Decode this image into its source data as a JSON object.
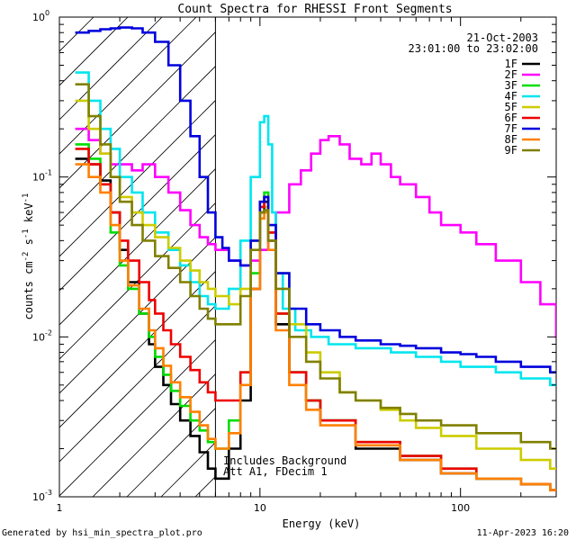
{
  "footer": {
    "left": "Generated by hsi_min_spectra_plot.pro",
    "right": "11-Apr-2023 16:20"
  },
  "chart_data": {
    "type": "line",
    "title": "Count Spectra for RHESSI Front Segments",
    "xlabel": "Energy (keV)",
    "ylabel_parts": [
      "counts cm",
      "-2",
      " s",
      "-1",
      " keV",
      "-1"
    ],
    "xscale": "log",
    "yscale": "log",
    "xlim": [
      1,
      300
    ],
    "ylim": [
      0.001,
      1
    ],
    "x_tick_labels": [
      {
        "value": 1,
        "label": "1"
      },
      {
        "value": 10,
        "label": "10"
      },
      {
        "value": 100,
        "label": "100"
      }
    ],
    "y_tick_labels": [
      {
        "value": 1,
        "base": "10",
        "exp": "0"
      },
      {
        "value": 0.1,
        "base": "10",
        "exp": "-1"
      },
      {
        "value": 0.01,
        "base": "10",
        "exp": "-2"
      },
      {
        "value": 0.001,
        "base": "10",
        "exp": "-3"
      }
    ],
    "date_label": "21-Oct-2003",
    "time_label": "23:01:00 to 23:02:00",
    "annotation_lines": [
      "Includes Background",
      "Att A1, FDecim 1"
    ],
    "shaded_region": {
      "x_max": 6,
      "style": "diagonal hatch"
    },
    "grid": false,
    "legend_position": "top-right",
    "series": [
      {
        "name": "1F",
        "color": "#000000",
        "x": [
          1.2,
          1.4,
          1.6,
          1.8,
          2.0,
          2.2,
          2.5,
          2.8,
          3.0,
          3.3,
          3.6,
          4.0,
          4.5,
          5.0,
          5.5,
          6.0,
          7.0,
          8.0,
          9.0,
          10.0,
          10.5,
          11.0,
          12.0,
          14.0,
          17.0,
          20.0,
          30.0,
          50.0,
          80.0,
          120.0,
          200.0,
          280.0
        ],
        "y": [
          0.13,
          0.12,
          0.095,
          0.06,
          0.035,
          0.022,
          0.014,
          0.009,
          0.0065,
          0.005,
          0.0038,
          0.003,
          0.0024,
          0.0019,
          0.0015,
          0.0013,
          0.002,
          0.004,
          0.02,
          0.06,
          0.07,
          0.04,
          0.012,
          0.006,
          0.004,
          0.003,
          0.002,
          0.0017,
          0.0014,
          0.0013,
          0.0012,
          0.0011
        ]
      },
      {
        "name": "2F",
        "color": "#ff00ff",
        "x": [
          1.2,
          1.4,
          1.6,
          1.8,
          2.0,
          2.3,
          2.6,
          3.0,
          3.5,
          4.0,
          4.5,
          5.0,
          5.5,
          6.0,
          7.0,
          8.0,
          9.0,
          10.0,
          11.0,
          12.0,
          14.0,
          16.0,
          18.0,
          20.0,
          22.0,
          25.0,
          28.0,
          32.0,
          36.0,
          40.0,
          45.0,
          50.0,
          60.0,
          70.0,
          80.0,
          100.0,
          120.0,
          150.0,
          200.0,
          250.0,
          300.0
        ],
        "y": [
          0.2,
          0.17,
          0.14,
          0.12,
          0.12,
          0.11,
          0.12,
          0.1,
          0.08,
          0.062,
          0.05,
          0.042,
          0.038,
          0.035,
          0.03,
          0.028,
          0.03,
          0.035,
          0.045,
          0.06,
          0.09,
          0.11,
          0.14,
          0.17,
          0.18,
          0.16,
          0.13,
          0.12,
          0.14,
          0.12,
          0.1,
          0.09,
          0.075,
          0.06,
          0.05,
          0.045,
          0.038,
          0.03,
          0.022,
          0.016,
          0.01
        ]
      },
      {
        "name": "3F",
        "color": "#00dd00",
        "x": [
          1.2,
          1.4,
          1.6,
          1.8,
          2.0,
          2.2,
          2.5,
          2.8,
          3.0,
          3.3,
          3.6,
          4.0,
          4.5,
          5.0,
          5.5,
          6.0,
          7.0,
          8.0,
          9.0,
          10.0,
          10.5,
          11.0,
          12.0,
          14.0,
          17.0,
          20.0,
          30.0,
          50.0,
          80.0,
          120.0,
          200.0,
          280.0
        ],
        "y": [
          0.16,
          0.13,
          0.09,
          0.045,
          0.028,
          0.02,
          0.014,
          0.01,
          0.0075,
          0.0058,
          0.0046,
          0.0037,
          0.003,
          0.0026,
          0.0022,
          0.002,
          0.003,
          0.006,
          0.025,
          0.07,
          0.08,
          0.045,
          0.014,
          0.006,
          0.004,
          0.003,
          0.0022,
          0.0018,
          0.0015,
          0.0013,
          0.0012,
          0.0011
        ]
      },
      {
        "name": "4F",
        "color": "#00e5ee",
        "x": [
          1.2,
          1.4,
          1.6,
          1.8,
          2.0,
          2.3,
          2.6,
          3.0,
          3.5,
          4.0,
          4.5,
          5.0,
          5.5,
          6.0,
          7.0,
          8.0,
          9.0,
          10.0,
          10.5,
          11.0,
          11.5,
          12.0,
          13.0,
          15.0,
          18.0,
          22.0,
          30.0,
          45.0,
          60.0,
          80.0,
          100.0,
          150.0,
          200.0,
          280.0
        ],
        "y": [
          0.45,
          0.3,
          0.2,
          0.15,
          0.1,
          0.08,
          0.06,
          0.045,
          0.035,
          0.028,
          0.022,
          0.018,
          0.016,
          0.015,
          0.02,
          0.04,
          0.1,
          0.22,
          0.24,
          0.16,
          0.06,
          0.025,
          0.015,
          0.011,
          0.01,
          0.009,
          0.0085,
          0.008,
          0.0075,
          0.007,
          0.0065,
          0.006,
          0.0055,
          0.005
        ]
      },
      {
        "name": "5F",
        "color": "#cccc00",
        "x": [
          1.2,
          1.4,
          1.6,
          1.8,
          2.0,
          2.3,
          2.6,
          3.0,
          3.5,
          4.0,
          4.5,
          5.0,
          5.5,
          6.0,
          7.0,
          8.0,
          9.0,
          10.0,
          10.5,
          11.0,
          12.0,
          14.0,
          17.0,
          20.0,
          25.0,
          30.0,
          40.0,
          50.0,
          60.0,
          80.0,
          120.0,
          200.0,
          280.0
        ],
        "y": [
          0.3,
          0.2,
          0.14,
          0.1,
          0.075,
          0.06,
          0.05,
          0.042,
          0.036,
          0.03,
          0.026,
          0.022,
          0.02,
          0.018,
          0.016,
          0.02,
          0.04,
          0.07,
          0.065,
          0.045,
          0.025,
          0.012,
          0.008,
          0.006,
          0.0045,
          0.004,
          0.0035,
          0.003,
          0.0027,
          0.0024,
          0.002,
          0.0017,
          0.0015
        ]
      },
      {
        "name": "6F",
        "color": "#ee0000",
        "x": [
          1.2,
          1.4,
          1.6,
          1.8,
          2.0,
          2.2,
          2.5,
          2.8,
          3.0,
          3.3,
          3.6,
          4.0,
          4.5,
          5.0,
          5.5,
          6.0,
          7.0,
          8.0,
          9.0,
          10.0,
          10.5,
          11.0,
          12.0,
          14.0,
          17.0,
          20.0,
          30.0,
          50.0,
          80.0,
          120.0,
          200.0,
          280.0
        ],
        "y": [
          0.15,
          0.12,
          0.09,
          0.06,
          0.04,
          0.03,
          0.022,
          0.017,
          0.014,
          0.011,
          0.009,
          0.0075,
          0.0062,
          0.0052,
          0.0045,
          0.004,
          0.004,
          0.006,
          0.02,
          0.065,
          0.075,
          0.045,
          0.014,
          0.006,
          0.004,
          0.003,
          0.0022,
          0.0018,
          0.0015,
          0.0013,
          0.0012,
          0.0011
        ]
      },
      {
        "name": "7F",
        "color": "#0000dd",
        "x": [
          1.2,
          1.4,
          1.6,
          1.8,
          2.0,
          2.3,
          2.6,
          3.0,
          3.5,
          4.0,
          4.5,
          5.0,
          5.5,
          6.0,
          6.5,
          7.0,
          8.0,
          9.0,
          10.0,
          10.5,
          11.0,
          12.0,
          14.0,
          17.0,
          20.0,
          25.0,
          30.0,
          40.0,
          50.0,
          60.0,
          80.0,
          100.0,
          120.0,
          150.0,
          200.0,
          280.0
        ],
        "y": [
          0.8,
          0.82,
          0.84,
          0.85,
          0.86,
          0.85,
          0.8,
          0.7,
          0.5,
          0.3,
          0.18,
          0.1,
          0.06,
          0.042,
          0.036,
          0.03,
          0.028,
          0.04,
          0.07,
          0.075,
          0.05,
          0.025,
          0.015,
          0.012,
          0.011,
          0.01,
          0.0095,
          0.009,
          0.0088,
          0.0085,
          0.008,
          0.0078,
          0.0075,
          0.007,
          0.0065,
          0.006
        ]
      },
      {
        "name": "8F",
        "color": "#ff8000",
        "x": [
          1.2,
          1.4,
          1.6,
          1.8,
          2.0,
          2.2,
          2.5,
          2.8,
          3.0,
          3.3,
          3.6,
          4.0,
          4.5,
          5.0,
          5.5,
          6.0,
          7.0,
          8.0,
          9.0,
          10.0,
          10.5,
          11.0,
          12.0,
          14.0,
          17.0,
          20.0,
          30.0,
          50.0,
          80.0,
          120.0,
          200.0,
          280.0
        ],
        "y": [
          0.12,
          0.1,
          0.08,
          0.05,
          0.03,
          0.021,
          0.015,
          0.011,
          0.0085,
          0.0066,
          0.0052,
          0.0042,
          0.0034,
          0.0028,
          0.0023,
          0.002,
          0.0025,
          0.005,
          0.02,
          0.055,
          0.06,
          0.035,
          0.011,
          0.005,
          0.0035,
          0.0028,
          0.0021,
          0.0017,
          0.0014,
          0.0013,
          0.0012,
          0.0011
        ]
      },
      {
        "name": "9F",
        "color": "#808000",
        "x": [
          1.2,
          1.4,
          1.6,
          1.8,
          2.0,
          2.3,
          2.6,
          3.0,
          3.5,
          4.0,
          4.5,
          5.0,
          5.5,
          6.0,
          7.0,
          8.0,
          9.0,
          10.0,
          10.5,
          11.0,
          12.0,
          14.0,
          17.0,
          20.0,
          25.0,
          30.0,
          40.0,
          50.0,
          60.0,
          80.0,
          120.0,
          200.0,
          280.0
        ],
        "y": [
          0.38,
          0.24,
          0.16,
          0.1,
          0.07,
          0.05,
          0.04,
          0.032,
          0.027,
          0.022,
          0.018,
          0.015,
          0.013,
          0.012,
          0.012,
          0.018,
          0.035,
          0.06,
          0.062,
          0.04,
          0.02,
          0.01,
          0.007,
          0.0055,
          0.0045,
          0.004,
          0.0036,
          0.0033,
          0.003,
          0.0028,
          0.0025,
          0.0022,
          0.002
        ]
      }
    ]
  }
}
